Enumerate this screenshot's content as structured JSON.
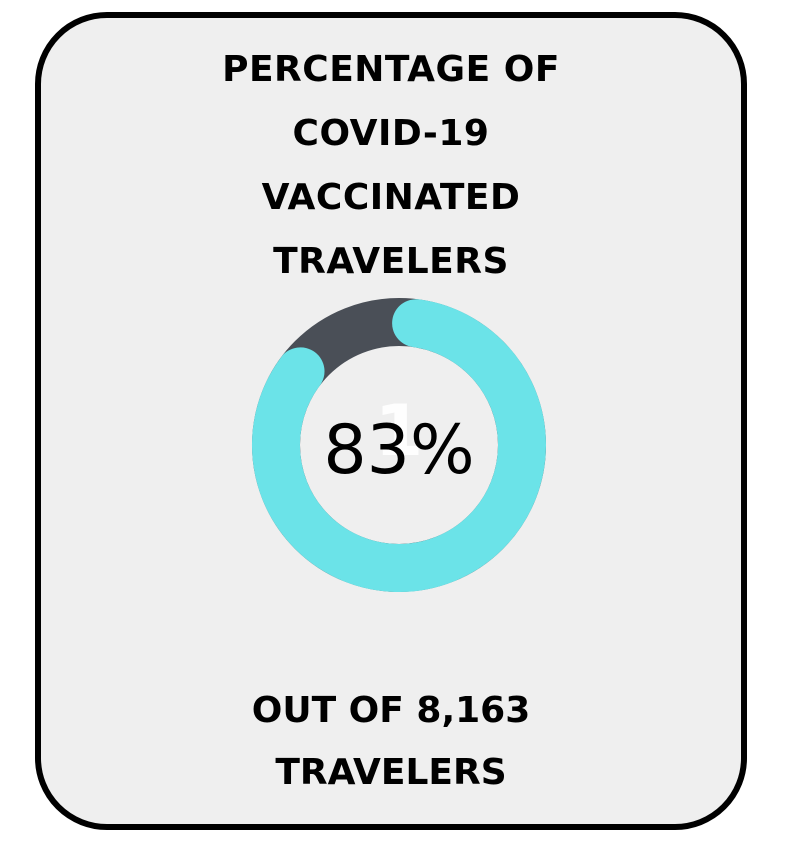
{
  "title_lines": [
    "PERCENTAGE OF",
    "COVID-19",
    "VACCINATED",
    "TRAVELERS"
  ],
  "footer_lines": [
    "OUT OF 8,163",
    "TRAVELERS"
  ],
  "chart_data": {
    "type": "pie",
    "subtype": "donut",
    "value_percent": 83,
    "center_label": "83%",
    "slices": [
      {
        "value": 83,
        "color": "#6be3e8"
      },
      {
        "value": 17,
        "color": "#4a4f57"
      }
    ],
    "watermark": "1"
  },
  "colors": {
    "accent": "#6be3e8",
    "remainder": "#4a4f57",
    "card_background": "#efefef",
    "border": "#000000"
  }
}
